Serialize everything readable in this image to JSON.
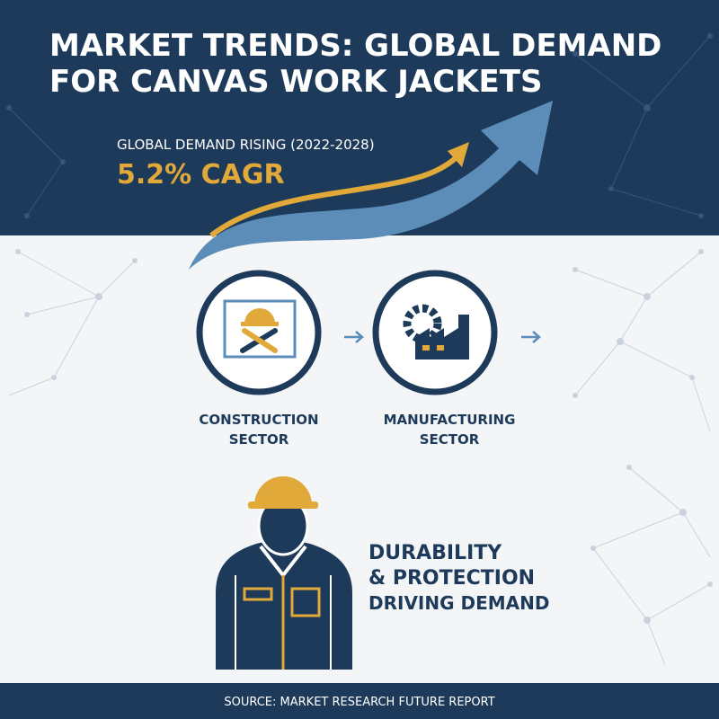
{
  "header": {
    "title_lines": [
      "MARKET TRENDS: GLOBAL DEMAND",
      "FOR CANVAS WORK JACKETS"
    ],
    "subtitle": "GLOBAL DEMAND RISING (2022-2028)",
    "stat": "5.2% CAGR"
  },
  "sectors": [
    {
      "label_lines": [
        "CONSTRUCTION",
        "SECTOR"
      ]
    },
    {
      "label_lines": [
        "MANUFACTURING",
        "SECTOR"
      ]
    }
  ],
  "message_lines": [
    "DURABILITY",
    "& PROTECTION",
    "DRIVING DEMAND"
  ],
  "footer": {
    "source": "SOURCE: MARKET RESEARCH FUTURE REPORT"
  }
}
